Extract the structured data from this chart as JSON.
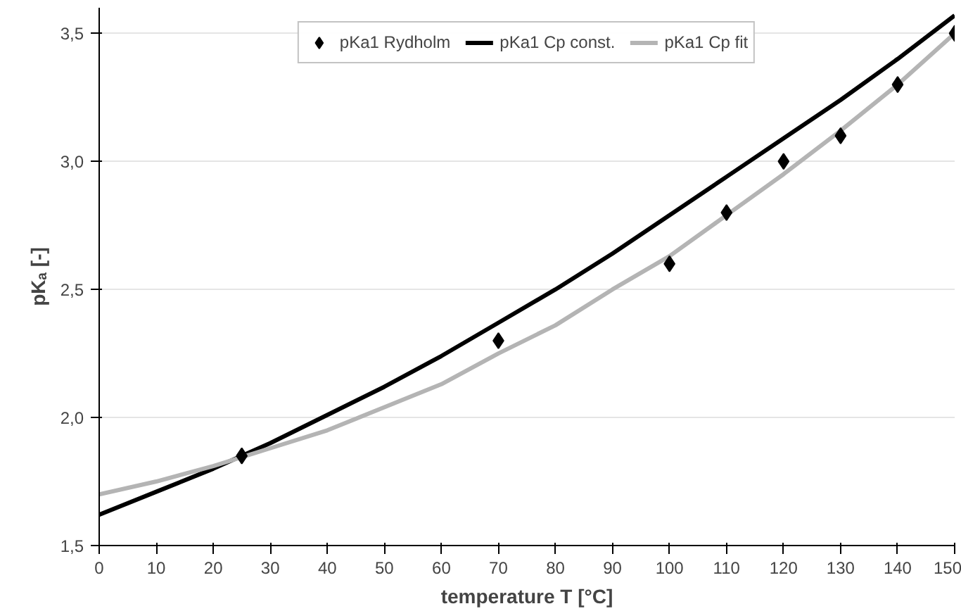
{
  "chart_data": {
    "type": "line",
    "xlabel": "temperature T [°C]",
    "ylabel": "pKₐ [-]",
    "xlim": [
      0,
      150
    ],
    "xticks": [
      0,
      10,
      20,
      30,
      40,
      50,
      60,
      70,
      80,
      90,
      100,
      110,
      120,
      130,
      140,
      150
    ],
    "ylim": [
      1.5,
      3.6
    ],
    "yticks": [
      {
        "value": 1.5,
        "label": "1,5"
      },
      {
        "value": 2.0,
        "label": "2,0"
      },
      {
        "value": 2.5,
        "label": "2,5"
      },
      {
        "value": 3.0,
        "label": "3,0"
      },
      {
        "value": 3.5,
        "label": "3,5"
      }
    ],
    "grid": "y",
    "legend": "top",
    "series": [
      {
        "name": "pKa1 Rydholm",
        "type": "scatter",
        "marker": "diamond",
        "color": "#000000",
        "x": [
          25,
          70,
          100,
          110,
          120,
          130,
          140,
          150
        ],
        "values": [
          1.85,
          2.3,
          2.6,
          2.8,
          3.0,
          3.1,
          3.3,
          3.5
        ]
      },
      {
        "name": "pKa1 Cp const.",
        "color": "#000000",
        "x": [
          0,
          10,
          20,
          30,
          40,
          50,
          60,
          70,
          80,
          90,
          100,
          110,
          120,
          130,
          140,
          150
        ],
        "values": [
          1.62,
          1.71,
          1.8,
          1.9,
          2.01,
          2.12,
          2.24,
          2.37,
          2.5,
          2.64,
          2.79,
          2.94,
          3.09,
          3.24,
          3.4,
          3.57
        ]
      },
      {
        "name": "pKa1 Cp fit",
        "color": "#b4b4b4",
        "x": [
          0,
          10,
          20,
          30,
          40,
          50,
          60,
          70,
          80,
          90,
          100,
          110,
          120,
          130,
          140,
          150
        ],
        "values": [
          1.7,
          1.75,
          1.81,
          1.88,
          1.95,
          2.04,
          2.13,
          2.25,
          2.36,
          2.5,
          2.63,
          2.79,
          2.95,
          3.12,
          3.3,
          3.5
        ]
      }
    ]
  }
}
